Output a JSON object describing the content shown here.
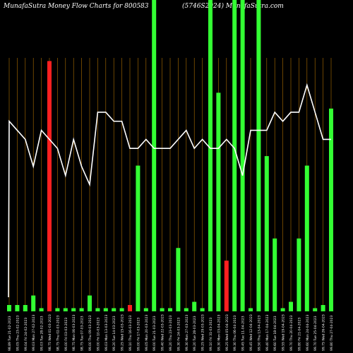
{
  "header": {
    "title_left": "MunafaSutra  Money Flow  Charts for 800583",
    "title_right": "(5746S2024) MunafaSutra.com"
  },
  "chart_data": {
    "type": "bar",
    "bar_colors": {
      "up": "#33ff33",
      "down": "#ff2020",
      "line": "#ffffff",
      "grid": "#b07000"
    },
    "categories": [
      "98.89 Tue 21-02-2023",
      "99.05 Thu 23-02-2023",
      "99.04 Fri 24-02-2023",
      "99.03 Mon 27-02-2023",
      "99.03 Tue 28-02-2023",
      "98.75 Wed 01-03-2023",
      "98.75 Thu 02-03-2023",
      "99.00 Fri 03-03-2023",
      "98.75 Mon 06-03-2023",
      "98.75 Tue 07-03-2023",
      "99.00 Thu 09-03-2023",
      "99.00 Fri 10-03-2023",
      "99.03 Mon 13-03-2023",
      "99.20 Tue 14-03-2023",
      "99.25 Wed 15-03-2023",
      "99.10 Thu 16-03-2023",
      "99.00 Fri 17-03-2023",
      "99.05 Mon 20-03-2023",
      "99.00 Tue 21-03-2023",
      "99.40 Wed 22-03-2023",
      "99.20 Thu 23-03-2023",
      "99.30 Fri 24-03-2023",
      "99.30 Mon 27-03-2023",
      "99.20 Tue 28-03-2023",
      "99.25 Wed 29-03-2023",
      "99.10 Fri 31-03-2023",
      "99.30 Mon 03-04-2023",
      "99.25 Wed 05-04-2023",
      "99.30 Thu 06-04-2023",
      "99.45 Tue 11-04-2023",
      "99.45 Wed 12-04-2023",
      "99.50 Thu 13-04-2023",
      "99.40 Mon 17-04-2023",
      "99.60 Tue 18-04-2023",
      "99.55 Wed 19-04-2023",
      "99.70 Thu 20-04-2023",
      "99.80 Fri 21-04-2023",
      "99.60 Mon 24-04-2023",
      "99.70 Tue 25-04-2023",
      "99.75 Wed 26-04-2023",
      "99.80 Thu 27-04-2023"
    ],
    "bars": [
      {
        "v": 0.02,
        "c": "up"
      },
      {
        "v": 0.02,
        "c": "up"
      },
      {
        "v": 0.02,
        "c": "up"
      },
      {
        "v": 0.05,
        "c": "up"
      },
      {
        "v": 0.01,
        "c": "up"
      },
      {
        "v": 0.79,
        "c": "down"
      },
      {
        "v": 0.01,
        "c": "up"
      },
      {
        "v": 0.01,
        "c": "up"
      },
      {
        "v": 0.01,
        "c": "up"
      },
      {
        "v": 0.01,
        "c": "up"
      },
      {
        "v": 0.05,
        "c": "up"
      },
      {
        "v": 0.01,
        "c": "up"
      },
      {
        "v": 0.01,
        "c": "up"
      },
      {
        "v": 0.01,
        "c": "up"
      },
      {
        "v": 0.01,
        "c": "up"
      },
      {
        "v": 0.02,
        "c": "down"
      },
      {
        "v": 0.46,
        "c": "up"
      },
      {
        "v": 0.01,
        "c": "up"
      },
      {
        "v": 1.45,
        "c": "up"
      },
      {
        "v": 0.01,
        "c": "up"
      },
      {
        "v": 0.01,
        "c": "up"
      },
      {
        "v": 0.2,
        "c": "up"
      },
      {
        "v": 0.01,
        "c": "up"
      },
      {
        "v": 0.03,
        "c": "up"
      },
      {
        "v": 0.01,
        "c": "up"
      },
      {
        "v": 1.45,
        "c": "up"
      },
      {
        "v": 0.69,
        "c": "up"
      },
      {
        "v": 0.16,
        "c": "down"
      },
      {
        "v": 1.45,
        "c": "up"
      },
      {
        "v": 1.45,
        "c": "up"
      },
      {
        "v": 0.01,
        "c": "up"
      },
      {
        "v": 1.45,
        "c": "up"
      },
      {
        "v": 0.49,
        "c": "up"
      },
      {
        "v": 0.23,
        "c": "up"
      },
      {
        "v": 0.01,
        "c": "up"
      },
      {
        "v": 0.03,
        "c": "up"
      },
      {
        "v": 0.23,
        "c": "up"
      },
      {
        "v": 0.46,
        "c": "up"
      },
      {
        "v": 0.01,
        "c": "up"
      },
      {
        "v": 0.02,
        "c": "up"
      },
      {
        "v": 0.64,
        "c": "up"
      }
    ],
    "price_line": [
      98.89,
      98.88,
      98.87,
      98.84,
      98.88,
      98.87,
      98.86,
      98.83,
      98.87,
      98.84,
      98.82,
      98.9,
      98.9,
      98.89,
      98.89,
      98.86,
      98.86,
      98.87,
      98.86,
      98.86,
      98.86,
      98.87,
      98.88,
      98.86,
      98.87,
      98.86,
      98.86,
      98.87,
      98.86,
      98.83,
      98.88,
      98.88,
      98.88,
      98.9,
      98.89,
      98.9,
      98.9,
      98.93,
      98.9,
      98.87,
      98.87
    ],
    "ylim_bars": [
      0,
      0.8
    ],
    "ylim_line": [
      98.68,
      98.96
    ],
    "grid": true
  }
}
